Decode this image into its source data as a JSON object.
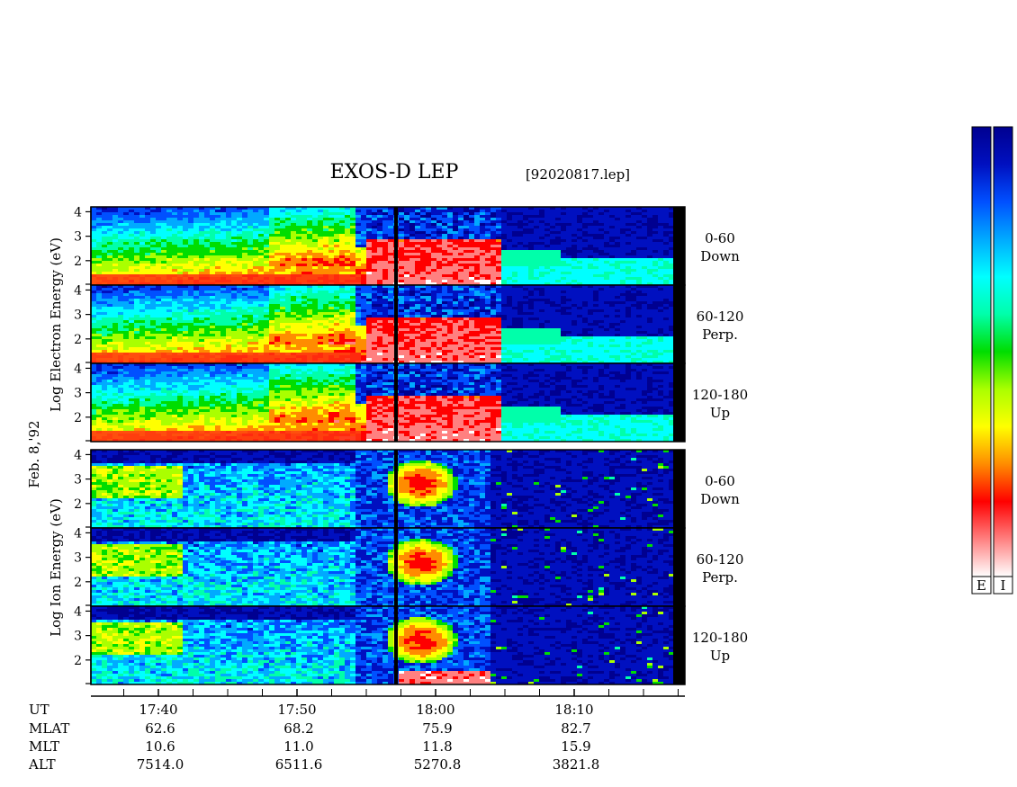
{
  "header": {
    "title": "EXOS-D LEP",
    "file": "[92020817.lep]"
  },
  "side_label": "Feb. 8,'92",
  "electron_axis_label": "Log Electron Energy (eV)",
  "ion_axis_label": "Log Ion Energy (eV)",
  "pitch_labels": [
    {
      "range": "0-60",
      "dir": "Down"
    },
    {
      "range": "60-120",
      "dir": "Perp."
    },
    {
      "range": "120-180",
      "dir": "Up"
    }
  ],
  "colorbar": {
    "labels": [
      "E",
      "I"
    ],
    "colors": [
      "#ffffff",
      "#ff8080",
      "#ff0000",
      "#ff8c00",
      "#ffff00",
      "#aaff00",
      "#00dd00",
      "#00ffaa",
      "#00ffff",
      "#00aaff",
      "#0050ff",
      "#0010c0",
      "#000090"
    ]
  },
  "chart_data": {
    "type": "heatmap",
    "title": "EXOS-D LEP",
    "panels": [
      {
        "species": "Electron",
        "pitch": "0-60 Down"
      },
      {
        "species": "Electron",
        "pitch": "60-120 Perp."
      },
      {
        "species": "Electron",
        "pitch": "120-180 Up"
      },
      {
        "species": "Ion",
        "pitch": "0-60 Down"
      },
      {
        "species": "Ion",
        "pitch": "60-120 Perp."
      },
      {
        "species": "Ion",
        "pitch": "120-180 Up"
      }
    ],
    "y_ticks": [
      "2",
      "3",
      "4"
    ],
    "ylim": [
      1,
      4.2
    ],
    "xlabel": "UT",
    "x_ticks": [
      "17:40",
      "17:50",
      "18:00",
      "18:10"
    ],
    "ephemeris": [
      {
        "label": "UT",
        "values": [
          "17:40",
          "17:50",
          "18:00",
          "18:10"
        ]
      },
      {
        "label": "MLAT",
        "values": [
          "62.6",
          "68.2",
          "75.9",
          "82.7"
        ]
      },
      {
        "label": "MLT",
        "values": [
          "10.6",
          "11.0",
          "11.8",
          "15.9"
        ]
      },
      {
        "label": "ALT",
        "values": [
          "7514.0",
          "6511.6",
          "5270.8",
          "3821.8"
        ]
      }
    ]
  }
}
